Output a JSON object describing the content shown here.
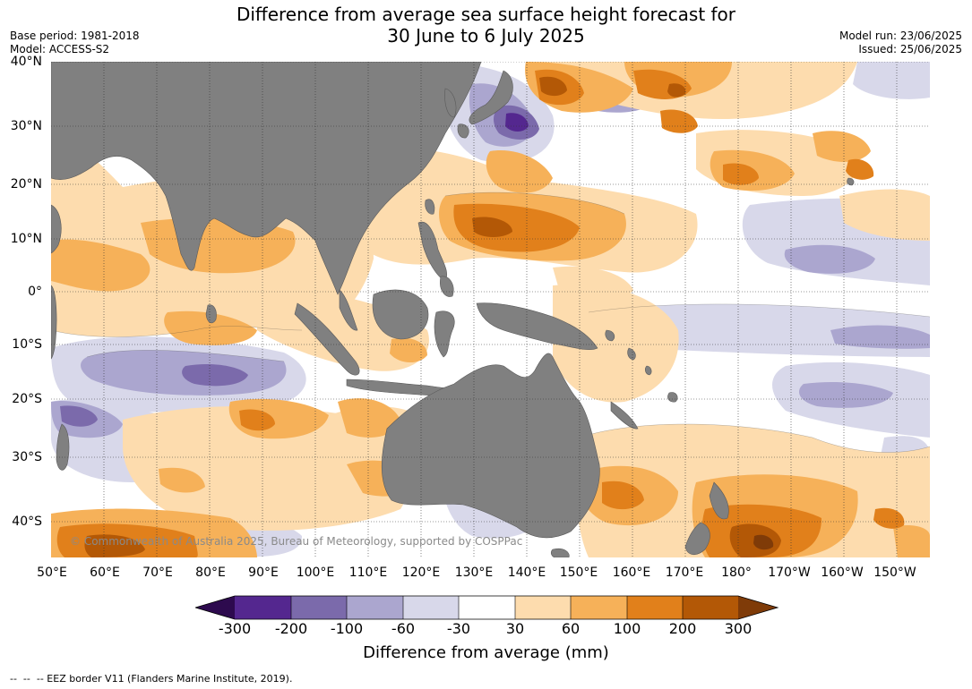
{
  "title_line1": "Difference from average sea surface height forecast for",
  "title_line2": "30 June to 6 July 2025",
  "base_period": "Base period: 1981-2018",
  "model": "Model: ACCESS-S2",
  "model_run": "Model run: 23/06/2025",
  "issued": "Issued: 25/06/2025",
  "lat_labels": [
    "40°N",
    "30°N",
    "20°N",
    "10°N",
    "0°",
    "10°S",
    "20°S",
    "30°S",
    "40°S"
  ],
  "lon_labels": [
    "50°E",
    "60°E",
    "70°E",
    "80°E",
    "90°E",
    "100°E",
    "110°E",
    "120°E",
    "130°E",
    "140°E",
    "150°E",
    "160°E",
    "170°E",
    "180°",
    "170°W",
    "160°W",
    "150°W"
  ],
  "copyright": "© Commonwealth of Australia 2025, Bureau of Meteorology, supported by COSPPac",
  "colorbar": {
    "title": "Difference from average (mm)",
    "ticks": [
      "-300",
      "-200",
      "-100",
      "-60",
      "-30",
      "30",
      "60",
      "100",
      "200",
      "300"
    ],
    "colors": [
      "#2d0a4e",
      "#54278f",
      "#7b6aab",
      "#aba6cf",
      "#d8d8ea",
      "#ffffff",
      "#fddcae",
      "#f6b159",
      "#e1801b",
      "#b35806",
      "#7f3b08"
    ],
    "land_color": "#808080"
  },
  "footer": "--  --  -- EEZ border V11 (Flanders Marine Institute, 2019)."
}
